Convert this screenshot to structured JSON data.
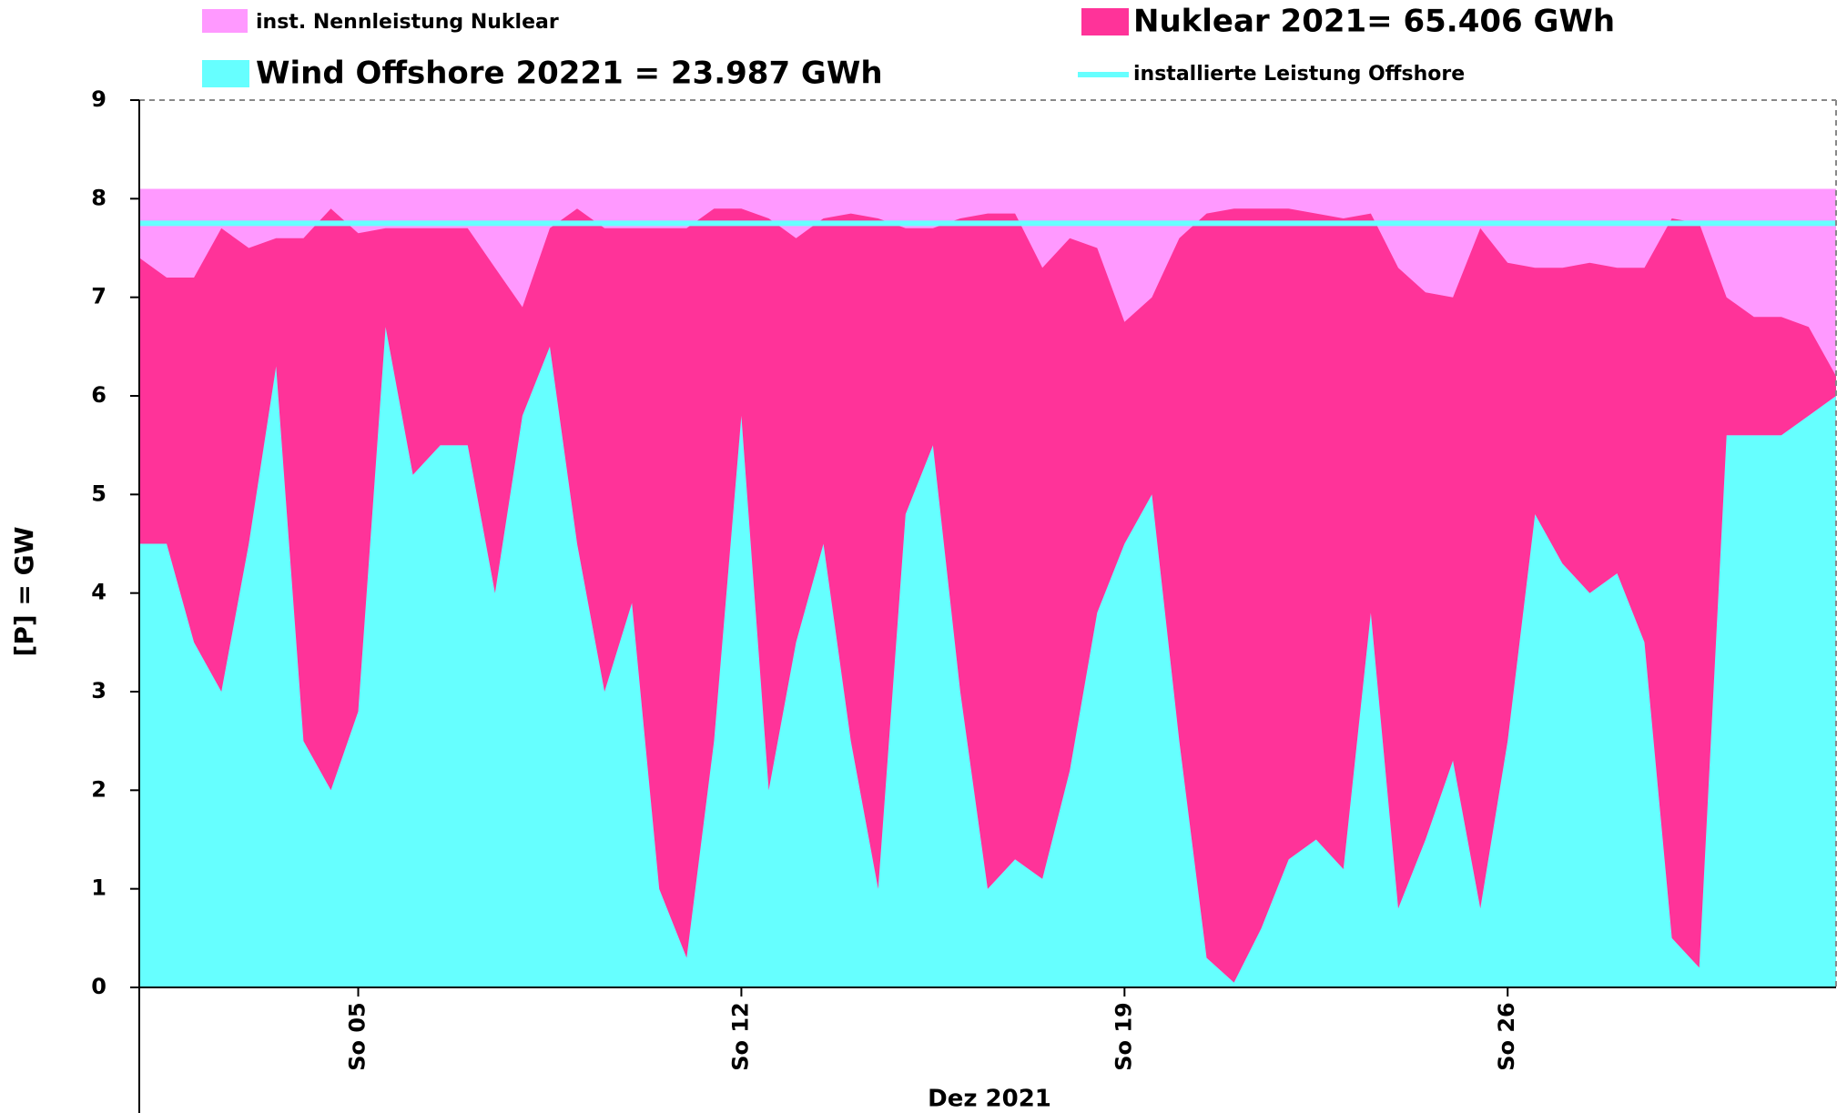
{
  "chart_data": {
    "type": "stacked_area",
    "y_label": "[P]  =  GW",
    "x_label": "Dez 2021",
    "xlim": [
      1,
      32
    ],
    "xticks": [
      {
        "value": 5,
        "label": "So 05"
      },
      {
        "value": 12,
        "label": "So 12"
      },
      {
        "value": 19,
        "label": "So 19"
      },
      {
        "value": 26,
        "label": "So 26"
      }
    ],
    "ylim": [
      0,
      9
    ],
    "yticks": [
      0,
      1,
      2,
      3,
      4,
      5,
      6,
      7,
      8,
      9
    ],
    "x": [
      1,
      1.5,
      2,
      2.5,
      3,
      3.5,
      4,
      4.5,
      5,
      5.5,
      6,
      6.5,
      7,
      7.5,
      8,
      8.5,
      9,
      9.5,
      10,
      10.5,
      11,
      11.5,
      12,
      12.5,
      13,
      13.5,
      14,
      14.5,
      15,
      15.5,
      16,
      16.5,
      17,
      17.5,
      18,
      18.5,
      19,
      19.5,
      20,
      20.5,
      21,
      21.5,
      22,
      22.5,
      23,
      23.5,
      24,
      24.5,
      25,
      25.5,
      26,
      26.5,
      27,
      27.5,
      28,
      28.5,
      29,
      29.5,
      30,
      30.5,
      31,
      31.5,
      32
    ],
    "series": [
      {
        "name": "Wind Offshore 20221 = 23.987 GWh",
        "color": "#66ffff",
        "values": [
          4.5,
          4.5,
          3.5,
          3.0,
          4.5,
          6.3,
          2.5,
          2.0,
          2.8,
          6.7,
          5.2,
          5.5,
          5.5,
          4.0,
          5.8,
          6.5,
          4.5,
          3.0,
          3.9,
          1.0,
          0.3,
          2.5,
          5.8,
          2.0,
          3.5,
          4.5,
          2.5,
          1.0,
          4.8,
          5.5,
          3.0,
          1.0,
          1.3,
          1.1,
          2.2,
          3.8,
          4.5,
          5.0,
          2.5,
          0.3,
          0.05,
          0.6,
          1.3,
          1.5,
          1.2,
          3.8,
          0.8,
          1.5,
          2.3,
          0.8,
          2.5,
          4.8,
          4.3,
          4.0,
          4.2,
          3.5,
          0.5,
          0.2,
          5.6,
          5.6,
          5.6,
          5.8,
          6.0
        ]
      },
      {
        "name": "Nuklear 2021= 65.406 GWh",
        "color": "#ff3399",
        "values": [
          2.9,
          2.7,
          3.7,
          4.7,
          3.0,
          1.3,
          5.1,
          5.9,
          4.85,
          1.0,
          2.5,
          2.2,
          2.2,
          3.3,
          1.1,
          1.2,
          3.4,
          4.7,
          3.8,
          6.7,
          7.4,
          5.4,
          2.1,
          5.8,
          4.1,
          3.3,
          5.35,
          6.8,
          2.9,
          2.2,
          4.8,
          6.85,
          6.55,
          6.2,
          5.4,
          3.7,
          2.25,
          2.0,
          5.1,
          7.55,
          7.85,
          7.3,
          6.6,
          6.35,
          6.6,
          4.05,
          6.5,
          5.55,
          4.7,
          6.9,
          4.85,
          2.5,
          3.0,
          3.35,
          3.1,
          3.8,
          7.3,
          7.55,
          1.4,
          1.2,
          1.2,
          0.9,
          0.2
        ]
      }
    ],
    "references": [
      {
        "name": "inst. Nennleistung Nuklear",
        "color": "#ff99ff",
        "value": 8.1,
        "style": "area"
      },
      {
        "name": "installierte Leistung Offshore",
        "color": "#66ffff",
        "value": 7.75,
        "style": "line"
      }
    ]
  }
}
